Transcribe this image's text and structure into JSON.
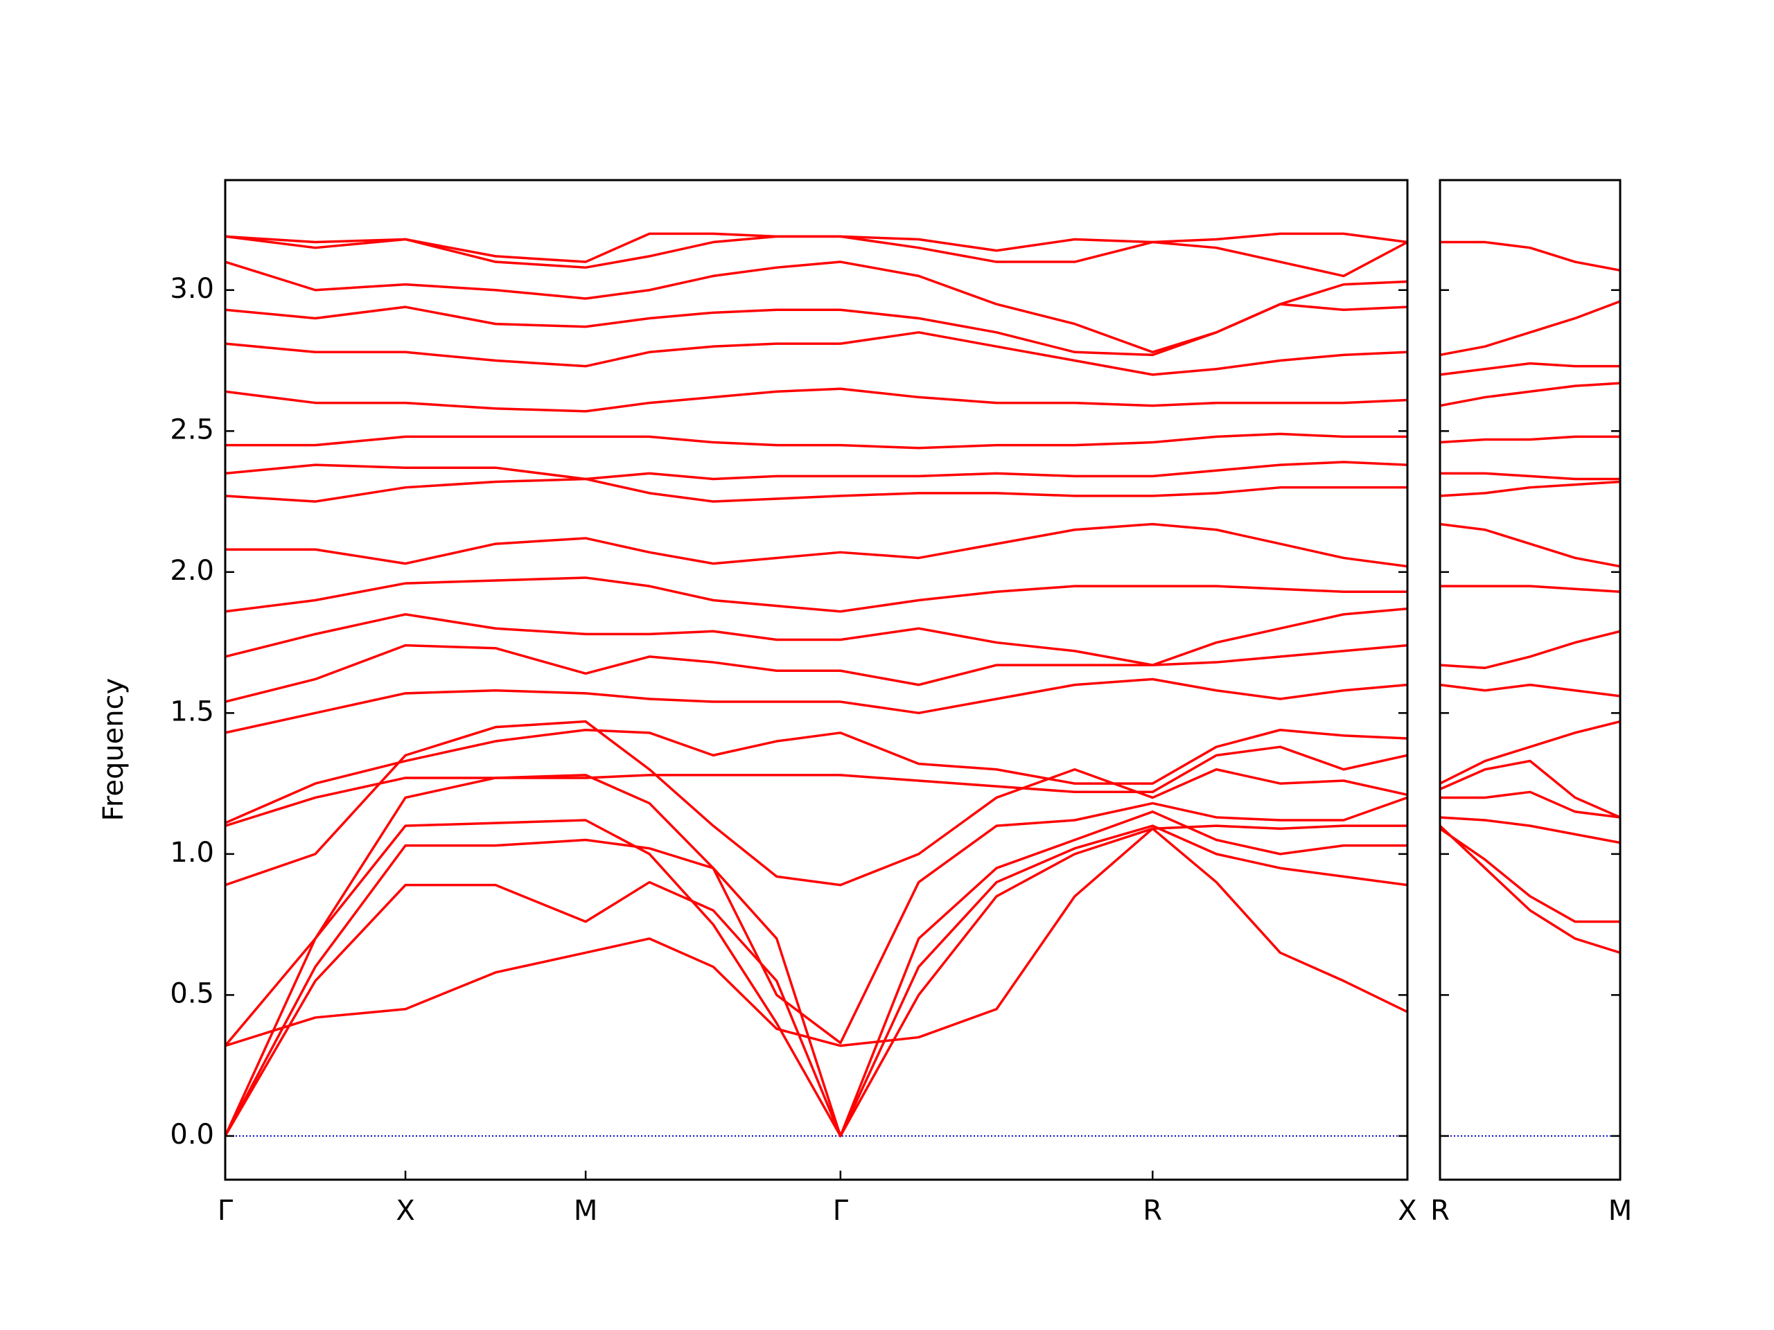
{
  "chart_data": [
    {
      "type": "line",
      "ylabel": "Frequency",
      "color": "#ff0000",
      "zero_line": true,
      "zero_line_color": "#0000cc",
      "xlim": [
        0,
        3.28
      ],
      "ylim": [
        -0.155,
        3.39
      ],
      "xticks": [
        {
          "value": 0,
          "label": "Γ"
        },
        {
          "value": 0.5,
          "label": "X"
        },
        {
          "value": 1.0,
          "label": "M"
        },
        {
          "value": 1.707,
          "label": "Γ"
        },
        {
          "value": 2.573,
          "label": "R"
        },
        {
          "value": 3.28,
          "label": "X"
        }
      ],
      "yticks": [
        {
          "value": 0,
          "label": "0.0"
        },
        0.5,
        {
          "value": 1,
          "label": "1.0"
        },
        1.5,
        {
          "value": 2,
          "label": "2.0"
        },
        2.5,
        {
          "value": 3,
          "label": "3.0"
        }
      ],
      "show_ytick_labels": true,
      "x": [
        0,
        0.25,
        0.5,
        0.75,
        1.0,
        1.177,
        1.354,
        1.53,
        1.707,
        1.924,
        2.14,
        2.357,
        2.573,
        2.75,
        2.927,
        3.103,
        3.28
      ],
      "series": [
        {
          "values": [
            0,
            0.55,
            0.89,
            0.89,
            0.76,
            0.9,
            0.8,
            0.55,
            0,
            0.5,
            0.85,
            1.0,
            1.09,
            0.9,
            0.65,
            0.55,
            0.44
          ]
        },
        {
          "values": [
            0,
            0.6,
            1.03,
            1.03,
            1.05,
            1.02,
            0.95,
            0.7,
            0,
            0.6,
            0.9,
            1.02,
            1.1,
            1.0,
            0.95,
            0.92,
            0.89
          ]
        },
        {
          "values": [
            0,
            0.7,
            1.1,
            1.11,
            1.12,
            1.0,
            0.75,
            0.4,
            0,
            0.7,
            0.95,
            1.05,
            1.15,
            1.05,
            1.0,
            1.03,
            1.03
          ]
        },
        {
          "values": [
            0.32,
            0.42,
            0.45,
            0.58,
            0.65,
            0.7,
            0.6,
            0.38,
            0.32,
            0.35,
            0.45,
            0.85,
            1.09,
            1.1,
            1.09,
            1.1,
            1.1
          ]
        },
        {
          "values": [
            0.32,
            0.7,
            1.2,
            1.27,
            1.28,
            1.18,
            0.95,
            0.5,
            0.33,
            0.9,
            1.1,
            1.12,
            1.18,
            1.13,
            1.12,
            1.12,
            1.2
          ]
        },
        {
          "values": [
            0.89,
            1.0,
            1.35,
            1.45,
            1.47,
            1.3,
            1.1,
            0.92,
            0.89,
            1.0,
            1.2,
            1.3,
            1.2,
            1.3,
            1.25,
            1.26,
            1.21
          ]
        },
        {
          "values": [
            1.1,
            1.2,
            1.27,
            1.27,
            1.27,
            1.28,
            1.28,
            1.28,
            1.28,
            1.26,
            1.24,
            1.22,
            1.22,
            1.35,
            1.38,
            1.3,
            1.35
          ]
        },
        {
          "values": [
            1.11,
            1.25,
            1.33,
            1.4,
            1.44,
            1.43,
            1.35,
            1.4,
            1.43,
            1.32,
            1.3,
            1.25,
            1.25,
            1.38,
            1.44,
            1.42,
            1.41
          ]
        },
        {
          "values": [
            1.43,
            1.5,
            1.57,
            1.58,
            1.57,
            1.55,
            1.54,
            1.54,
            1.54,
            1.5,
            1.55,
            1.6,
            1.62,
            1.58,
            1.55,
            1.58,
            1.6
          ]
        },
        {
          "values": [
            1.54,
            1.62,
            1.74,
            1.73,
            1.64,
            1.7,
            1.68,
            1.65,
            1.65,
            1.6,
            1.67,
            1.67,
            1.67,
            1.68,
            1.7,
            1.72,
            1.74
          ]
        },
        {
          "values": [
            1.7,
            1.78,
            1.85,
            1.8,
            1.78,
            1.78,
            1.79,
            1.76,
            1.76,
            1.8,
            1.75,
            1.72,
            1.67,
            1.75,
            1.8,
            1.85,
            1.87
          ]
        },
        {
          "values": [
            1.86,
            1.9,
            1.96,
            1.97,
            1.98,
            1.95,
            1.9,
            1.88,
            1.86,
            1.9,
            1.93,
            1.95,
            1.95,
            1.95,
            1.94,
            1.93,
            1.93
          ]
        },
        {
          "values": [
            2.08,
            2.08,
            2.03,
            2.1,
            2.12,
            2.07,
            2.03,
            2.05,
            2.07,
            2.05,
            2.1,
            2.15,
            2.17,
            2.15,
            2.1,
            2.05,
            2.02
          ]
        },
        {
          "values": [
            2.27,
            2.25,
            2.3,
            2.32,
            2.33,
            2.28,
            2.25,
            2.26,
            2.27,
            2.28,
            2.28,
            2.27,
            2.27,
            2.28,
            2.3,
            2.3,
            2.3
          ]
        },
        {
          "values": [
            2.35,
            2.38,
            2.37,
            2.37,
            2.33,
            2.35,
            2.33,
            2.34,
            2.34,
            2.34,
            2.35,
            2.34,
            2.34,
            2.36,
            2.38,
            2.39,
            2.38
          ]
        },
        {
          "values": [
            2.45,
            2.45,
            2.48,
            2.48,
            2.48,
            2.48,
            2.46,
            2.45,
            2.45,
            2.44,
            2.45,
            2.45,
            2.46,
            2.48,
            2.49,
            2.48,
            2.48
          ]
        },
        {
          "values": [
            2.64,
            2.6,
            2.6,
            2.58,
            2.57,
            2.6,
            2.62,
            2.64,
            2.65,
            2.62,
            2.6,
            2.6,
            2.59,
            2.6,
            2.6,
            2.6,
            2.61
          ]
        },
        {
          "values": [
            2.81,
            2.78,
            2.78,
            2.75,
            2.73,
            2.78,
            2.8,
            2.81,
            2.81,
            2.85,
            2.8,
            2.75,
            2.7,
            2.72,
            2.75,
            2.77,
            2.78
          ]
        },
        {
          "values": [
            2.93,
            2.9,
            2.94,
            2.88,
            2.87,
            2.9,
            2.92,
            2.93,
            2.93,
            2.9,
            2.85,
            2.78,
            2.77,
            2.85,
            2.95,
            2.93,
            2.94
          ]
        },
        {
          "values": [
            3.1,
            3.0,
            3.02,
            3.0,
            2.97,
            3.0,
            3.05,
            3.08,
            3.1,
            3.05,
            2.95,
            2.88,
            2.78,
            2.85,
            2.95,
            3.02,
            3.03
          ]
        },
        {
          "values": [
            3.19,
            3.15,
            3.18,
            3.12,
            3.1,
            3.2,
            3.2,
            3.19,
            3.19,
            3.15,
            3.1,
            3.1,
            3.17,
            3.15,
            3.1,
            3.05,
            3.17
          ]
        },
        {
          "values": [
            3.19,
            3.17,
            3.18,
            3.1,
            3.08,
            3.12,
            3.17,
            3.19,
            3.19,
            3.18,
            3.14,
            3.18,
            3.17,
            3.18,
            3.2,
            3.2,
            3.17
          ]
        }
      ]
    },
    {
      "type": "line",
      "color": "#ff0000",
      "zero_line": true,
      "zero_line_color": "#0000cc",
      "xlim": [
        0,
        0.5
      ],
      "ylim": [
        -0.155,
        3.39
      ],
      "xticks": [
        {
          "value": 0,
          "label": "R"
        },
        {
          "value": 0.5,
          "label": "M"
        }
      ],
      "yticks": [
        0,
        0.5,
        1,
        1.5,
        2,
        2.5,
        3
      ],
      "show_ytick_labels": false,
      "x": [
        0,
        0.125,
        0.25,
        0.375,
        0.5
      ],
      "series": [
        {
          "values": [
            1.09,
            0.98,
            0.85,
            0.76,
            0.76
          ]
        },
        {
          "values": [
            1.1,
            0.95,
            0.8,
            0.7,
            0.65
          ]
        },
        {
          "values": [
            1.13,
            1.12,
            1.1,
            1.07,
            1.04
          ]
        },
        {
          "values": [
            1.2,
            1.2,
            1.22,
            1.15,
            1.13
          ]
        },
        {
          "values": [
            1.23,
            1.3,
            1.33,
            1.2,
            1.13
          ]
        },
        {
          "values": [
            1.25,
            1.33,
            1.38,
            1.43,
            1.47
          ]
        },
        {
          "values": [
            1.6,
            1.58,
            1.6,
            1.58,
            1.56
          ]
        },
        {
          "values": [
            1.67,
            1.66,
            1.7,
            1.75,
            1.79
          ]
        },
        {
          "values": [
            1.95,
            1.95,
            1.95,
            1.94,
            1.93
          ]
        },
        {
          "values": [
            2.17,
            2.15,
            2.1,
            2.05,
            2.02
          ]
        },
        {
          "values": [
            2.27,
            2.28,
            2.3,
            2.31,
            2.32
          ]
        },
        {
          "values": [
            2.35,
            2.35,
            2.34,
            2.33,
            2.33
          ]
        },
        {
          "values": [
            2.46,
            2.47,
            2.47,
            2.48,
            2.48
          ]
        },
        {
          "values": [
            2.59,
            2.62,
            2.64,
            2.66,
            2.67
          ]
        },
        {
          "values": [
            2.7,
            2.72,
            2.74,
            2.73,
            2.73
          ]
        },
        {
          "values": [
            2.77,
            2.8,
            2.85,
            2.9,
            2.96
          ]
        },
        {
          "values": [
            3.17,
            3.17,
            3.15,
            3.1,
            3.07
          ]
        }
      ]
    }
  ]
}
